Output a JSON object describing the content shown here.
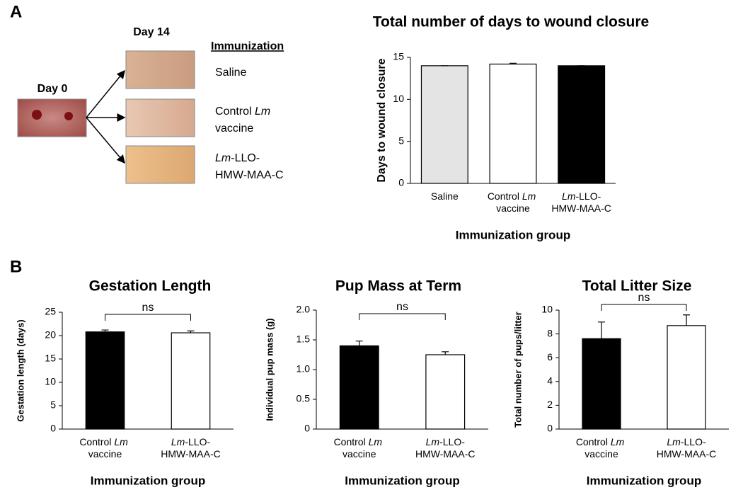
{
  "panel_a": {
    "letter": "A",
    "day0": "Day 0",
    "day14": "Day 14",
    "heading": "Immunization",
    "groups": [
      "Saline",
      "Control Lm vaccine",
      "Lm-LLO-HMW-MAA-C"
    ]
  },
  "panel_b": {
    "letter": "B"
  },
  "chart_data": [
    {
      "type": "bar",
      "title": "Total number of days to wound closure",
      "y_label": "Days to wound closure",
      "x_label": "Immunization group",
      "categories": [
        "Saline",
        "Control Lm vaccine",
        "Lm-LLO-HMW-MAA-C"
      ],
      "values": [
        14,
        14.2,
        14
      ],
      "errors": [
        0,
        0.1,
        0
      ],
      "colors": [
        "#e4e4e4",
        "#ffffff",
        "#000000"
      ],
      "ylim": [
        0,
        15
      ],
      "yticks": [
        0,
        5,
        10,
        15
      ]
    },
    {
      "type": "bar",
      "title": "Gestation Length",
      "y_label": "Gestation length (days)",
      "x_label": "Immunization group",
      "categories": [
        "Control Lm vaccine",
        "Lm-LLO-HMW-MAA-C"
      ],
      "values": [
        20.8,
        20.6
      ],
      "errors": [
        0.4,
        0.4
      ],
      "colors": [
        "#000000",
        "#ffffff"
      ],
      "ylim": [
        0,
        25
      ],
      "yticks": [
        0,
        5,
        10,
        15,
        20,
        25
      ],
      "annotation": "ns"
    },
    {
      "type": "bar",
      "title": "Pup Mass at Term",
      "y_label": "Individual pup mass (g)",
      "x_label": "Immunization group",
      "categories": [
        "Control Lm vaccine",
        "Lm-LLO-HMW-MAA-C"
      ],
      "values": [
        1.4,
        1.25
      ],
      "errors": [
        0.08,
        0.05
      ],
      "colors": [
        "#000000",
        "#ffffff"
      ],
      "ylim": [
        0,
        2
      ],
      "yticks": [
        0,
        0.5,
        {
          "value": 1,
          "label": "1.0"
        },
        1.5,
        {
          "value": 2,
          "label": "2.0"
        }
      ],
      "annotation": "ns"
    },
    {
      "type": "bar",
      "title": "Total Litter Size",
      "y_label": "Total number of pups/litter",
      "x_label": "Immunization group",
      "categories": [
        "Control Lm vaccine",
        "Lm-LLO-HMW-MAA-C"
      ],
      "values": [
        7.6,
        8.7
      ],
      "errors": [
        1.4,
        0.9
      ],
      "colors": [
        "#000000",
        "#ffffff"
      ],
      "ylim": [
        0,
        10
      ],
      "yticks": [
        0,
        2,
        4,
        6,
        8,
        10
      ],
      "annotation": "ns"
    }
  ]
}
